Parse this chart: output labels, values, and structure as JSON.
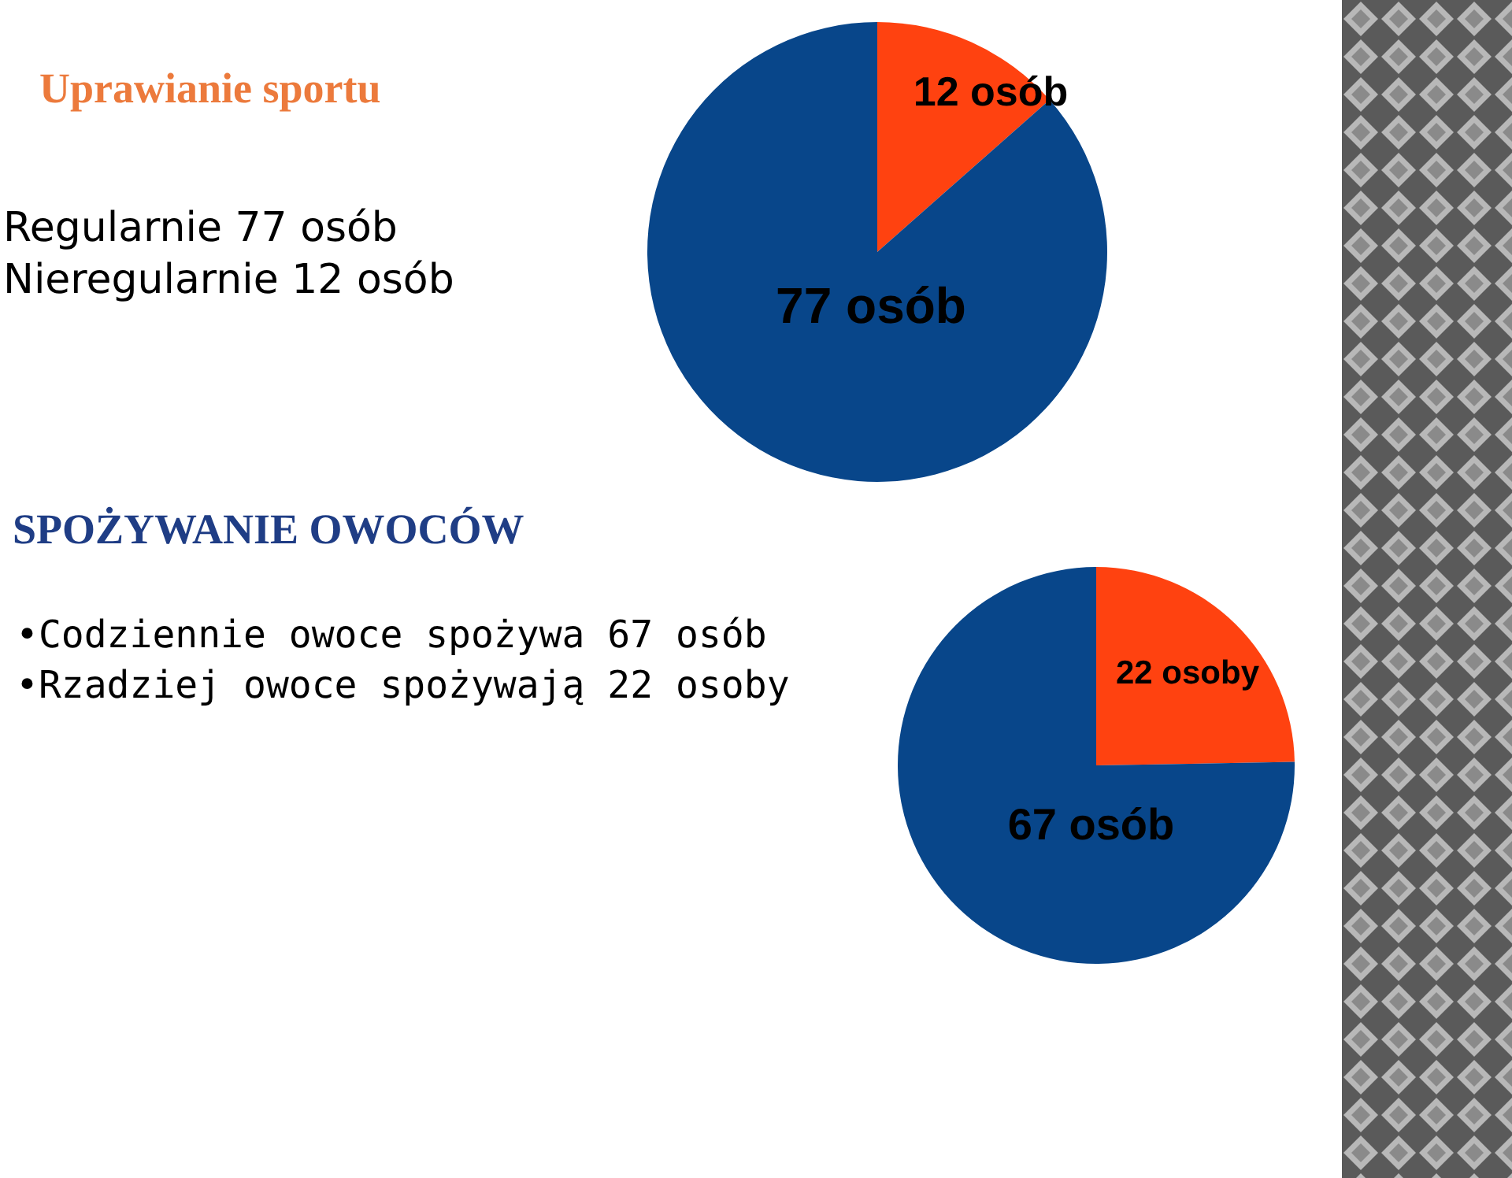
{
  "chart_data": [
    {
      "type": "pie",
      "title": "Uprawianie sportu",
      "annotations": [
        "Regularnie 77 osób",
        "Nieregularnie 12 osób"
      ],
      "categories": [
        null,
        null
      ],
      "values": [
        12,
        77
      ],
      "colors": [
        "#ff4210",
        "#08468a"
      ],
      "value_labels": [
        "12 osób",
        "77 osób"
      ]
    },
    {
      "type": "pie",
      "title": "SPOŻYWANIE OWOCÓW",
      "annotations": [
        "•Codziennie owoce spożywa 67 osób",
        "•Rzadziej owoce spożywają 22 osoby"
      ],
      "categories": [
        null,
        null
      ],
      "values": [
        22,
        67
      ],
      "colors": [
        "#ff4210",
        "#08468a"
      ],
      "value_labels": [
        "22 osoby",
        "67 osób"
      ]
    }
  ]
}
